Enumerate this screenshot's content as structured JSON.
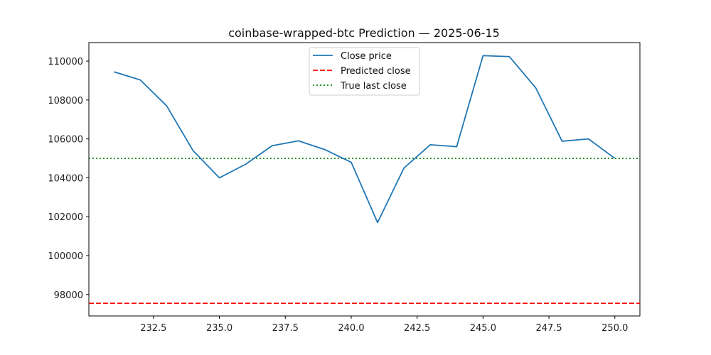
{
  "chart_data": {
    "type": "line",
    "title": "coinbase-wrapped-btc Prediction — 2025-06-15",
    "xlabel": "",
    "ylabel": "",
    "xlim": [
      230.05,
      250.95
    ],
    "ylim": [
      96900,
      110950
    ],
    "x_ticks": [
      232.5,
      235.0,
      237.5,
      240.0,
      242.5,
      245.0,
      247.5,
      250.0
    ],
    "x_tick_labels": [
      "232.5",
      "235.0",
      "237.5",
      "240.0",
      "242.5",
      "245.0",
      "247.5",
      "250.0"
    ],
    "y_ticks": [
      98000,
      100000,
      102000,
      104000,
      106000,
      108000,
      110000
    ],
    "y_tick_labels": [
      "98000",
      "100000",
      "102000",
      "104000",
      "106000",
      "108000",
      "110000"
    ],
    "grid": false,
    "legend_position": "upper-center",
    "series": [
      {
        "name": "Close price",
        "style": "solid",
        "color": "#1f77b4",
        "x": [
          231,
          232,
          233,
          234,
          235,
          236,
          237,
          238,
          239,
          240,
          241,
          242,
          243,
          244,
          245,
          246,
          247,
          248,
          249,
          250
        ],
        "values": [
          109450,
          109030,
          107700,
          105400,
          104000,
          104700,
          105650,
          105900,
          105450,
          104800,
          101700,
          104500,
          105700,
          105600,
          110280,
          110230,
          108620,
          105880,
          106000,
          105000
        ]
      }
    ],
    "hlines": [
      {
        "name": "Predicted close",
        "style": "dashed",
        "color": "#ff0000",
        "value": 97550
      },
      {
        "name": "True last close",
        "style": "dotted",
        "color": "#008000",
        "value": 105000
      }
    ]
  }
}
